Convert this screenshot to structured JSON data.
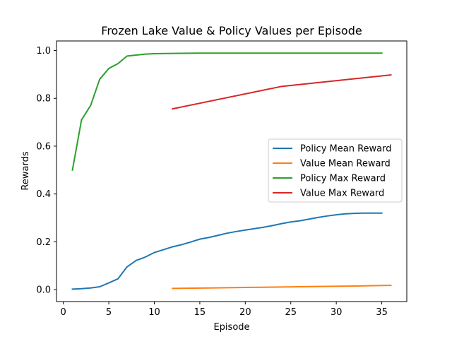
{
  "chart_data": {
    "type": "line",
    "title": "Frozen Lake Value & Policy Values per Episode",
    "xlabel": "Episode",
    "ylabel": "Rewards",
    "xlim": [
      -0.75,
      37.75
    ],
    "ylim": [
      -0.05,
      1.04
    ],
    "xticks": [
      0,
      5,
      10,
      15,
      20,
      25,
      30,
      35
    ],
    "yticks": [
      0.0,
      0.2,
      0.4,
      0.6,
      0.8,
      1.0
    ],
    "xtick_labels": [
      "0",
      "5",
      "10",
      "15",
      "20",
      "25",
      "30",
      "35"
    ],
    "ytick_labels": [
      "0.0",
      "0.2",
      "0.4",
      "0.6",
      "0.8",
      "1.0"
    ],
    "grid": false,
    "legend": "center-right",
    "series": [
      {
        "name": "Policy Mean Reward",
        "color": "#1f77b4",
        "x": [
          1,
          2,
          3,
          4,
          5,
          6,
          7,
          8,
          9,
          10,
          11,
          12,
          13,
          14,
          15,
          16,
          17,
          18,
          19,
          20,
          21,
          22,
          23,
          24,
          25,
          26,
          27,
          28,
          29,
          30,
          31,
          32,
          33,
          34,
          35
        ],
        "y": [
          0.002,
          0.004,
          0.007,
          0.012,
          0.028,
          0.045,
          0.095,
          0.122,
          0.136,
          0.155,
          0.167,
          0.179,
          0.188,
          0.199,
          0.211,
          0.218,
          0.227,
          0.236,
          0.243,
          0.249,
          0.255,
          0.261,
          0.268,
          0.276,
          0.283,
          0.288,
          0.295,
          0.302,
          0.308,
          0.313,
          0.317,
          0.319,
          0.32,
          0.32,
          0.32
        ]
      },
      {
        "name": "Value Mean Reward",
        "color": "#ff7f0e",
        "x": [
          12,
          16,
          20,
          24,
          28,
          32,
          36
        ],
        "y": [
          0.005,
          0.007,
          0.009,
          0.011,
          0.013,
          0.015,
          0.018
        ]
      },
      {
        "name": "Policy Max Reward",
        "color": "#2ca02c",
        "x": [
          1,
          2,
          3,
          4,
          5,
          6,
          7,
          8,
          9,
          10,
          12,
          15,
          20,
          25,
          30,
          35
        ],
        "y": [
          0.5,
          0.71,
          0.77,
          0.88,
          0.925,
          0.945,
          0.977,
          0.981,
          0.985,
          0.987,
          0.988,
          0.989,
          0.989,
          0.989,
          0.989,
          0.989
        ]
      },
      {
        "name": "Value Max Reward",
        "color": "#d62728",
        "x": [
          12,
          24,
          36
        ],
        "y": [
          0.756,
          0.85,
          0.898
        ]
      }
    ]
  }
}
